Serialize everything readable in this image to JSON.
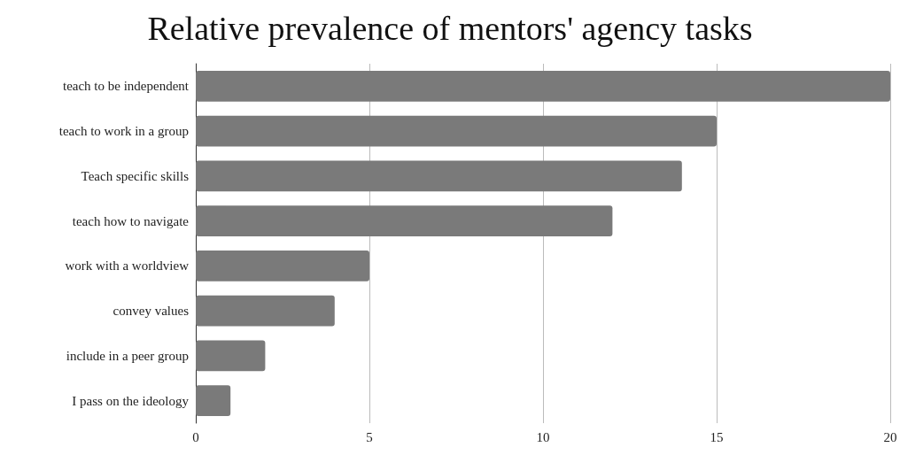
{
  "chart_data": {
    "type": "bar",
    "orientation": "horizontal",
    "title": "Relative prevalence of mentors' agency tasks",
    "categories": [
      "teach to be independent",
      "teach to work in a group",
      "Teach specific skills",
      "teach how to navigate",
      "work with a worldview",
      "convey values",
      "include in a peer group",
      "I pass on the ideology"
    ],
    "values": [
      20,
      15,
      14,
      12,
      5,
      4,
      2,
      1
    ],
    "color": "#7a7a7a",
    "xlim": [
      0,
      20
    ],
    "xticks": [
      0,
      5,
      10,
      15,
      20
    ],
    "grid": "x"
  }
}
